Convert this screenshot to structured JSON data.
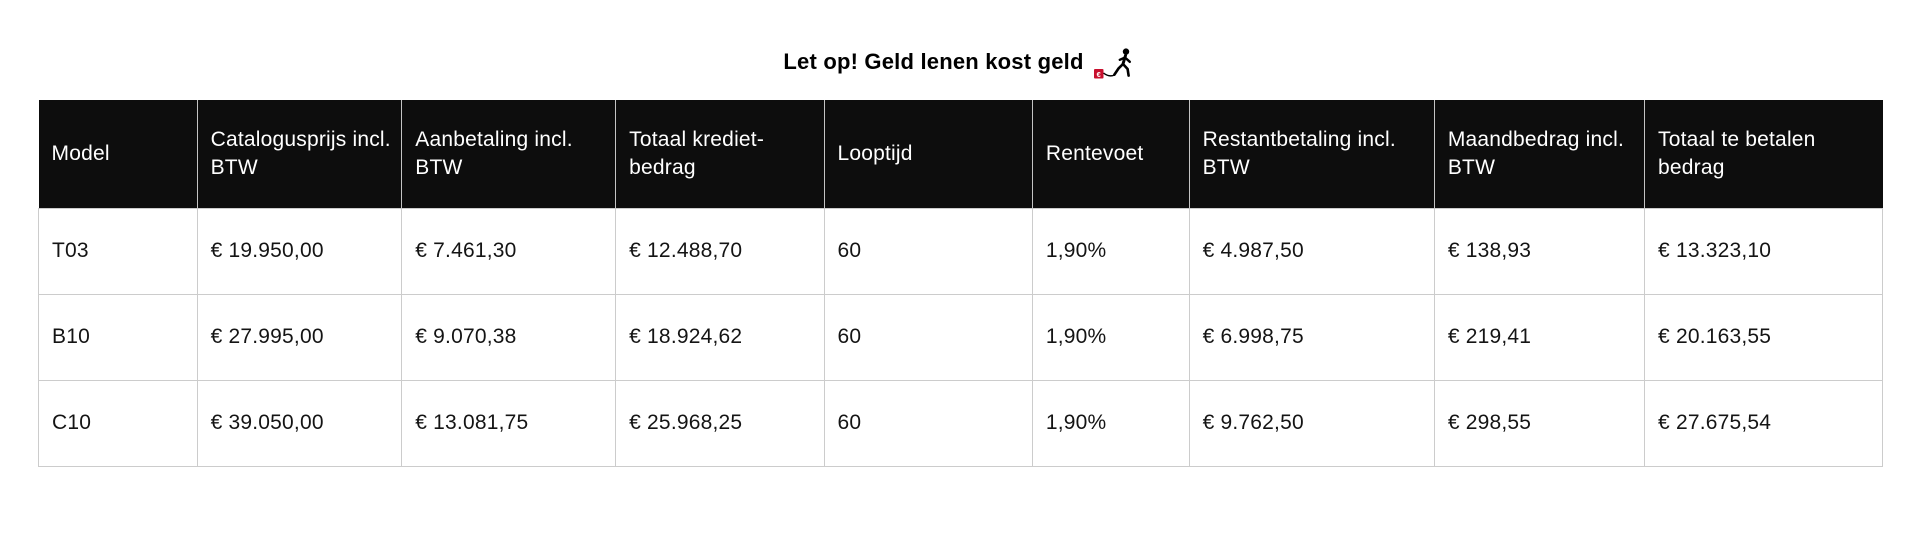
{
  "warning": {
    "text": "Let op! Geld lenen kost geld",
    "icon": "money-burden-icon"
  },
  "colors": {
    "header_bg": "#0d0d0d",
    "header_text": "#ffffff",
    "body_text": "#141414",
    "border": "#cccccc",
    "warning_red": "#c8102e"
  },
  "table": {
    "columns": [
      "Model",
      "Catalogusprijs incl. BTW",
      "Aanbetaling incl. BTW",
      "Totaal krediet-bedrag",
      "Looptijd",
      "Rentevoet",
      "Restantbetaling incl. BTW",
      "Maandbedrag incl. BTW",
      "Totaal te betalen bedrag"
    ],
    "rows": [
      [
        "T03",
        "€ 19.950,00",
        "€ 7.461,30",
        "€ 12.488,70",
        "60",
        "1,90%",
        "€ 4.987,50",
        "€ 138,93",
        "€ 13.323,10"
      ],
      [
        "B10",
        "€ 27.995,00",
        "€ 9.070,38",
        "€ 18.924,62",
        "60",
        "1,90%",
        "€ 6.998,75",
        "€ 219,41",
        "€ 20.163,55"
      ],
      [
        "C10",
        "€ 39.050,00",
        "€ 13.081,75",
        "€ 25.968,25",
        "60",
        "1,90%",
        "€ 9.762,50",
        "€ 298,55",
        "€ 27.675,54"
      ]
    ]
  }
}
